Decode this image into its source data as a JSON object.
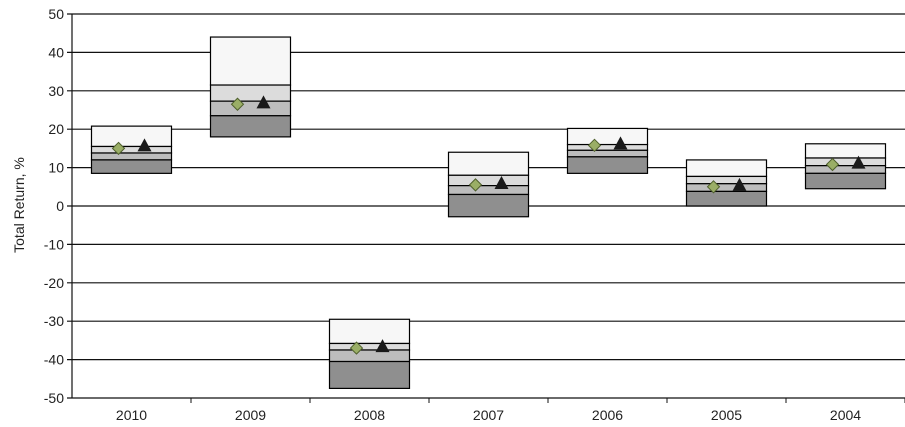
{
  "chart_data": {
    "type": "box",
    "ylabel": "Total Return, %",
    "xlabel": "",
    "title": "",
    "ylim": [
      -50,
      50
    ],
    "ytick_step": 10,
    "grid": "horizontal",
    "categories": [
      "2010",
      "2009",
      "2008",
      "2007",
      "2006",
      "2005",
      "2004"
    ],
    "boxes": [
      {
        "category": "2010",
        "p5": 8.5,
        "p25": 12.0,
        "median": 13.8,
        "p75": 15.5,
        "p95": 20.8,
        "diamond": 15.0,
        "triangle": 15.8
      },
      {
        "category": "2009",
        "p5": 18.0,
        "p25": 23.5,
        "median": 27.3,
        "p75": 31.5,
        "p95": 44.0,
        "diamond": 26.5,
        "triangle": 27.0
      },
      {
        "category": "2008",
        "p5": -47.5,
        "p25": -40.5,
        "median": -37.5,
        "p75": -35.8,
        "p95": -29.5,
        "diamond": -37.0,
        "triangle": -36.5
      },
      {
        "category": "2007",
        "p5": -2.8,
        "p25": 3.0,
        "median": 5.3,
        "p75": 8.0,
        "p95": 14.0,
        "diamond": 5.5,
        "triangle": 6.0
      },
      {
        "category": "2006",
        "p5": 8.5,
        "p25": 12.8,
        "median": 14.5,
        "p75": 16.0,
        "p95": 20.2,
        "diamond": 15.8,
        "triangle": 16.3
      },
      {
        "category": "2005",
        "p5": 0.0,
        "p25": 3.8,
        "median": 5.8,
        "p75": 7.7,
        "p95": 12.0,
        "diamond": 5.0,
        "triangle": 5.5
      },
      {
        "category": "2004",
        "p5": 4.5,
        "p25": 8.5,
        "median": 10.5,
        "p75": 12.5,
        "p95": 16.2,
        "diamond": 10.8,
        "triangle": 11.3
      }
    ],
    "colors": {
      "band_top": "#f7f7f7",
      "band_upper_mid": "#dcdcdc",
      "band_lower_mid": "#bdbdbd",
      "band_bottom": "#8f8f8f",
      "diamond_fill": "#9aae66",
      "diamond_stroke": "#4e5f2c",
      "triangle_fill": "#1a1a1a",
      "grid": "#111111"
    }
  }
}
